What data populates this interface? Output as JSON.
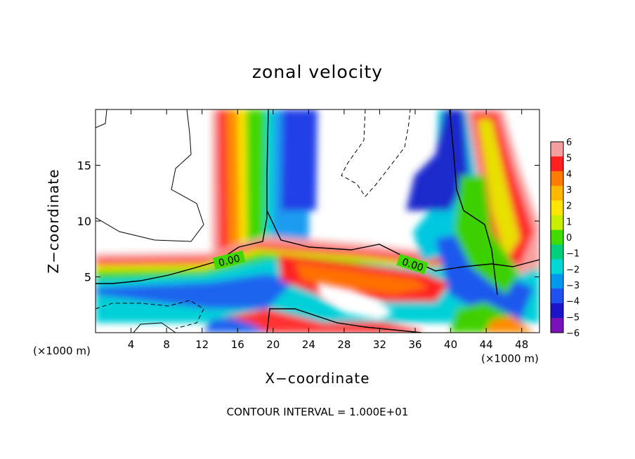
{
  "chart_data": {
    "type": "heatmap",
    "title": "zonal velocity",
    "xlabel": "X−coordinate",
    "ylabel": "Z−coordinate",
    "x_unit_left": "(×1000 m)",
    "x_unit_right": "(×1000 m)",
    "xlim": [
      0,
      50
    ],
    "ylim": [
      0,
      20
    ],
    "x_ticks": [
      4,
      8,
      12,
      16,
      20,
      24,
      28,
      32,
      36,
      40,
      44,
      48
    ],
    "y_ticks": [
      5,
      10,
      15
    ],
    "colorbar": {
      "ticks": [
        "6",
        "5",
        "4",
        "3",
        "2",
        "1",
        "0",
        "−1",
        "−2",
        "−3",
        "−4",
        "−5",
        "−6"
      ],
      "colors": [
        "#f5a0a0",
        "#ff2020",
        "#ff7a00",
        "#ffb800",
        "#ffe400",
        "#c8ee00",
        "#40dc00",
        "#00d07a",
        "#00d8d8",
        "#0099ee",
        "#1f50f0",
        "#1c14c8",
        "#7a10b8"
      ]
    },
    "contour_labels": [
      {
        "text": "0.00",
        "x": 15.5,
        "y": 6.5
      },
      {
        "text": "0.00",
        "x": 35,
        "y": 6.0
      }
    ],
    "footer": "CONTOUR INTERVAL = 1.000E+01"
  }
}
